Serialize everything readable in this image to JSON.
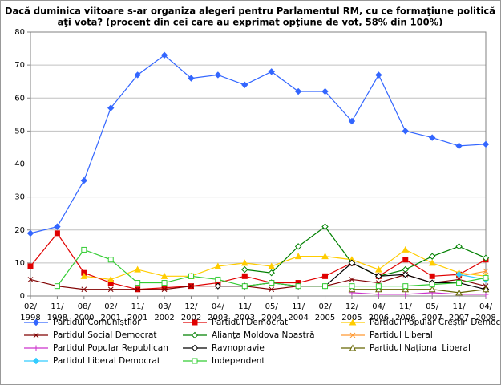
{
  "chart_data": {
    "type": "line",
    "title": [
      "Dacă duminica viitoare s-ar organiza alegeri pentru Parlamentul RM, cu ce formaţiune politică",
      "aţi vota? (procent din cei care au exprimat opţiune de vot, 58% din 100%)"
    ],
    "categories": [
      "02/ 1998",
      "11/ 1998",
      "08/ 2000",
      "02/ 2001",
      "11/ 2001",
      "03/ 2002",
      "12/ 2002",
      "04/ 2003",
      "11/ 2003",
      "05/ 2004",
      "11/ 2004",
      "02/ 2005",
      "12/ 2005",
      "04/ 2006",
      "11/ 2006",
      "05/ 2007",
      "11/ 2007",
      "04/ 2008"
    ],
    "ylim": [
      0,
      80
    ],
    "yticks": [
      0,
      10,
      20,
      30,
      40,
      50,
      60,
      70,
      80
    ],
    "grid": true,
    "series": [
      {
        "name": "Partidul Comuniştilor",
        "color": "#3366ff",
        "marker": "diamond",
        "values": [
          19,
          21,
          35,
          57,
          67,
          73,
          66,
          67,
          64,
          68,
          62,
          62,
          53,
          67,
          50,
          48,
          45.5,
          46
        ]
      },
      {
        "name": "Partidul Democrat",
        "color": "#e00000",
        "marker": "square",
        "values": [
          9,
          19,
          7,
          4,
          2,
          2.5,
          3,
          4,
          6,
          4,
          4,
          6,
          10,
          6,
          11,
          6,
          6.5,
          11
        ]
      },
      {
        "name": "Partidul Popular Creştin Democrat",
        "color": "#ffcc00",
        "marker": "triangle",
        "values": [
          null,
          null,
          6,
          5,
          8,
          6,
          6,
          9,
          10,
          9,
          12,
          12,
          11,
          8,
          14,
          10,
          7,
          6
        ]
      },
      {
        "name": "Partidul Social Democrat",
        "color": "#800000",
        "marker": "x",
        "values": [
          5,
          3,
          2,
          2,
          2,
          2,
          3,
          3,
          3,
          2,
          3,
          3,
          5,
          4,
          6.5,
          4,
          5,
          3
        ]
      },
      {
        "name": "Alianţa Moldova Noastră",
        "color": "#008000",
        "marker": "diamond-open",
        "values": [
          null,
          null,
          null,
          null,
          null,
          null,
          null,
          null,
          8,
          7,
          15,
          21,
          10,
          6,
          8,
          12,
          15,
          11.5
        ]
      },
      {
        "name": "Partidul Liberal",
        "color": "#ff9933",
        "marker": "x",
        "values": [
          null,
          null,
          null,
          null,
          null,
          null,
          null,
          null,
          null,
          null,
          null,
          null,
          null,
          null,
          null,
          null,
          6,
          7.5
        ]
      },
      {
        "name": "Partidul Popular Republican",
        "color": "#cc33cc",
        "marker": "plus",
        "values": [
          null,
          null,
          null,
          null,
          null,
          null,
          null,
          null,
          null,
          null,
          null,
          null,
          1,
          0.5,
          0.5,
          1,
          0.5,
          0.5
        ]
      },
      {
        "name": "Ravnopravie",
        "color": "#000000",
        "marker": "diamond-open",
        "values": [
          null,
          null,
          null,
          null,
          null,
          null,
          null,
          3,
          3,
          4,
          3,
          3,
          10,
          6,
          6.5,
          4,
          4,
          2
        ]
      },
      {
        "name": "Partidul Naţional Liberal",
        "color": "#666600",
        "marker": "triangle-open",
        "values": [
          null,
          null,
          null,
          null,
          null,
          null,
          null,
          null,
          null,
          null,
          null,
          null,
          2,
          2,
          2,
          2,
          1,
          2
        ]
      },
      {
        "name": "Partidul Liberal Democrat",
        "color": "#33ccff",
        "marker": "diamond",
        "values": [
          null,
          null,
          null,
          null,
          null,
          null,
          null,
          null,
          null,
          null,
          null,
          null,
          null,
          null,
          null,
          null,
          6.5,
          5
        ]
      },
      {
        "name": "Independent",
        "color": "#33cc33",
        "marker": "square-open",
        "values": [
          null,
          3,
          14,
          11,
          4,
          4,
          6,
          5,
          3,
          4,
          3,
          3,
          3,
          3,
          3,
          3.5,
          4,
          5.5
        ]
      }
    ]
  }
}
